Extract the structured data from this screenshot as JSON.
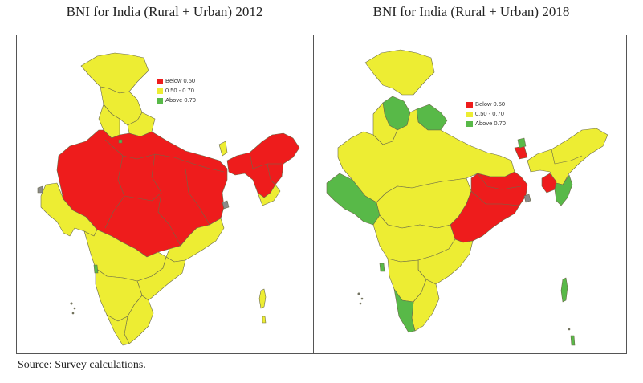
{
  "maps": [
    {
      "title": "BNI for India (Rural + Urban) 2012",
      "legend": [
        {
          "label": "Below 0.50",
          "color": "#ee1c1c"
        },
        {
          "label": "0.50 - 0.70",
          "color": "#eded33"
        },
        {
          "label": "Above 0.70",
          "color": "#58b948"
        }
      ]
    },
    {
      "title": "BNI for India (Rural + Urban) 2018",
      "legend": [
        {
          "label": "Below 0.50",
          "color": "#ee1c1c"
        },
        {
          "label": "0.50 - 0.70",
          "color": "#eded33"
        },
        {
          "label": "Above 0.70",
          "color": "#58b948"
        }
      ]
    }
  ],
  "source": "Source: Survey calculations."
}
